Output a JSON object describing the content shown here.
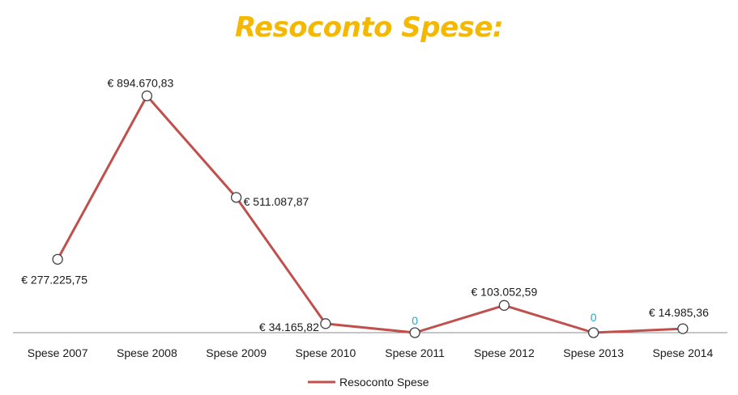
{
  "chart_data": {
    "type": "line",
    "title": "Resoconto Spese:",
    "categories": [
      "Spese 2007",
      "Spese 2008",
      "Spese 2009",
      "Spese 2010",
      "Spese 2011",
      "Spese 2012",
      "Spese 2013",
      "Spese 2014"
    ],
    "series": [
      {
        "name": "Resoconto Spese",
        "values": [
          277225.75,
          894670.83,
          511087.87,
          34165.82,
          0,
          103052.59,
          0,
          14985.36
        ],
        "labels": [
          "€ 277.225,75",
          "€ 894.670,83",
          "€ 511.087,87",
          "€ 34.165,82",
          "0",
          "€ 103.052,59",
          "0",
          "€ 14.985,36"
        ],
        "color": "#c0504d"
      }
    ],
    "xlabel": "",
    "ylabel": "",
    "ylim": [
      0,
      1000000
    ],
    "grid": false,
    "legend": "bottom",
    "title_color": "#f5b800",
    "zero_label_color": "#2aa7c9"
  }
}
